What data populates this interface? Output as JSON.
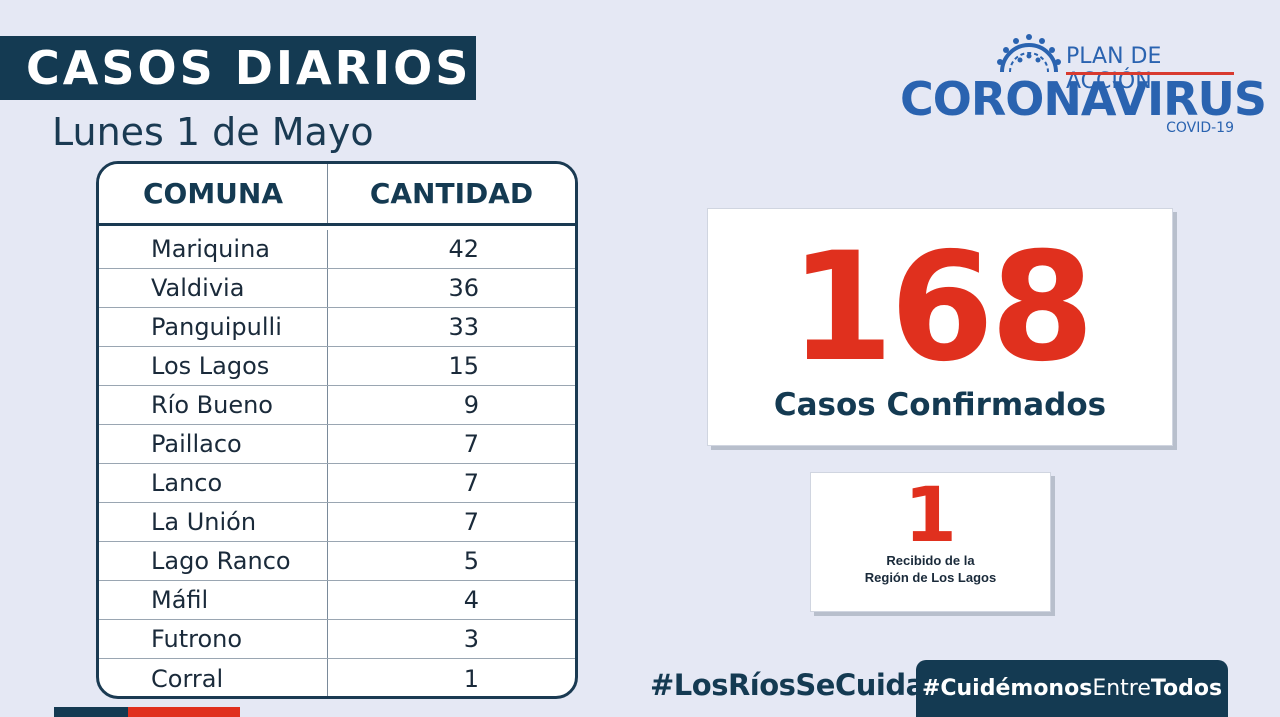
{
  "header": {
    "title": "CASOS DIARIOS",
    "date": "Lunes 1 de Mayo"
  },
  "logo": {
    "plan": "PLAN DE ACCIÓN",
    "name": "CORONAVIRUS",
    "sub": "COVID-19"
  },
  "table": {
    "headers": [
      "COMUNA",
      "CANTIDAD"
    ],
    "rows": [
      {
        "comuna": "Mariquina",
        "cantidad": "42"
      },
      {
        "comuna": "Valdivia",
        "cantidad": "36"
      },
      {
        "comuna": "Panguipulli",
        "cantidad": "33"
      },
      {
        "comuna": "Los Lagos",
        "cantidad": "15"
      },
      {
        "comuna": "Río Bueno",
        "cantidad": "9"
      },
      {
        "comuna": "Paillaco",
        "cantidad": "7"
      },
      {
        "comuna": "Lanco",
        "cantidad": "7"
      },
      {
        "comuna": "La Unión",
        "cantidad": "7"
      },
      {
        "comuna": "Lago Ranco",
        "cantidad": "5"
      },
      {
        "comuna": "Máfil",
        "cantidad": "4"
      },
      {
        "comuna": "Futrono",
        "cantidad": "3"
      },
      {
        "comuna": "Corral",
        "cantidad": "1"
      }
    ]
  },
  "totals": {
    "confirmed_value": "168",
    "confirmed_label": "Casos Confirmados",
    "received_value": "1",
    "received_label_line1": "Recibido de la",
    "received_label_line2": "Región de Los Lagos"
  },
  "hashtags": {
    "first": "#LosRíosSeCuida",
    "second_a": "#Cuidémonos",
    "second_b": "Entre",
    "second_c": "Todos"
  },
  "colors": {
    "navy": "#143a52",
    "red": "#e0301e",
    "blue": "#2a63b0",
    "background": "#e5e8f4"
  }
}
